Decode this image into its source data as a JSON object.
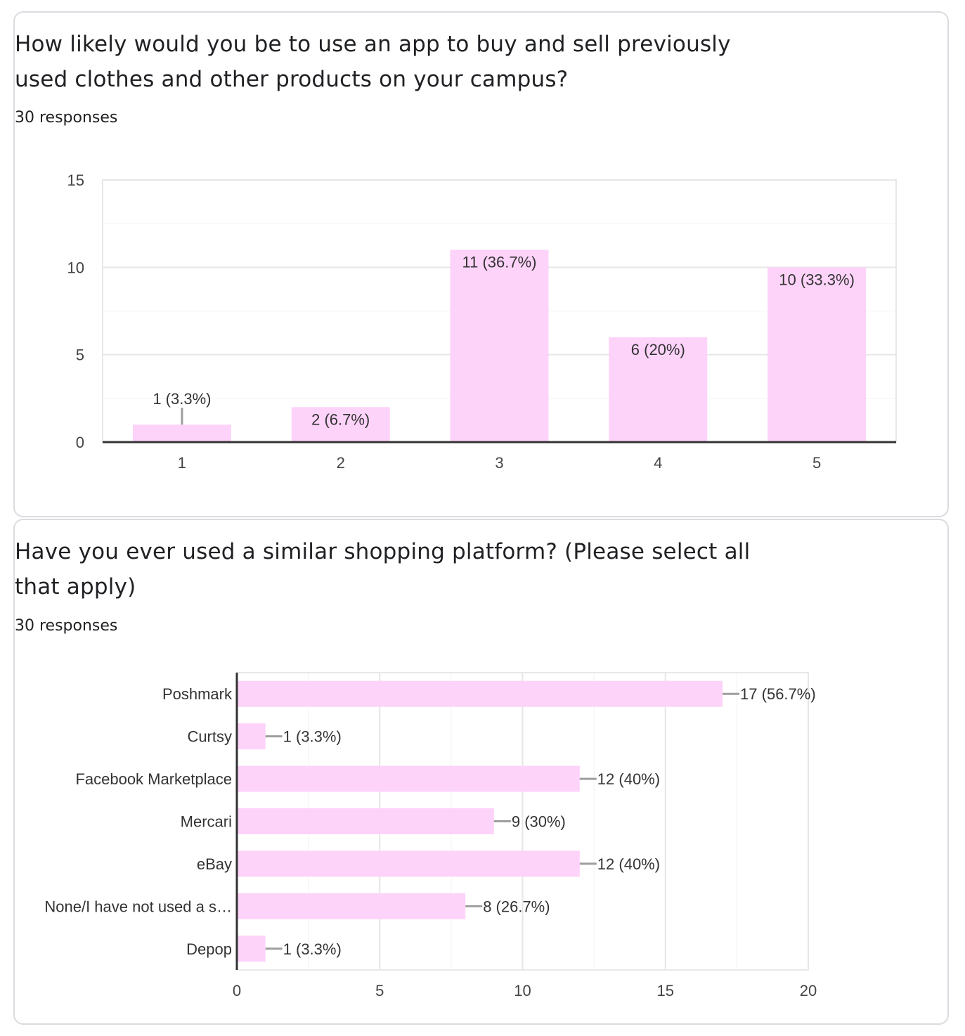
{
  "questions": [
    {
      "title": "How likely would you be to use an app to buy and sell previously used clothes and other products on your campus?",
      "responses": "30 responses"
    },
    {
      "title": "Have you ever used a similar shopping platform? (Please select all that apply)",
      "responses": "30 responses"
    }
  ],
  "colors": {
    "bar": "#fdd3f9",
    "grid": "#e8e8e8",
    "axis": "#333333",
    "leader": "#9e9e9e",
    "text": "#202124"
  },
  "chart_data": [
    {
      "type": "bar",
      "categories": [
        "1",
        "2",
        "3",
        "4",
        "5"
      ],
      "values": [
        1,
        2,
        11,
        6,
        10
      ],
      "data_labels": [
        "1 (3.3%)",
        "2 (6.7%)",
        "11 (36.7%)",
        "6 (20%)",
        "10 (33.3%)"
      ],
      "ylim": [
        0,
        15
      ],
      "yticks": [
        0,
        5,
        10,
        15
      ],
      "grid": true
    },
    {
      "type": "bar",
      "orientation": "horizontal",
      "categories": [
        "Poshmark",
        "Curtsy",
        "Facebook Marketplace",
        "Mercari",
        "eBay",
        "None/I have not used a s…",
        "Depop"
      ],
      "values": [
        17,
        1,
        12,
        9,
        12,
        8,
        1
      ],
      "data_labels": [
        "17 (56.7%)",
        "1 (3.3%)",
        "12 (40%)",
        "9 (30%)",
        "12 (40%)",
        "8 (26.7%)",
        "1 (3.3%)"
      ],
      "xlim": [
        0,
        20
      ],
      "xticks": [
        0,
        5,
        10,
        15,
        20
      ],
      "grid": true
    }
  ]
}
